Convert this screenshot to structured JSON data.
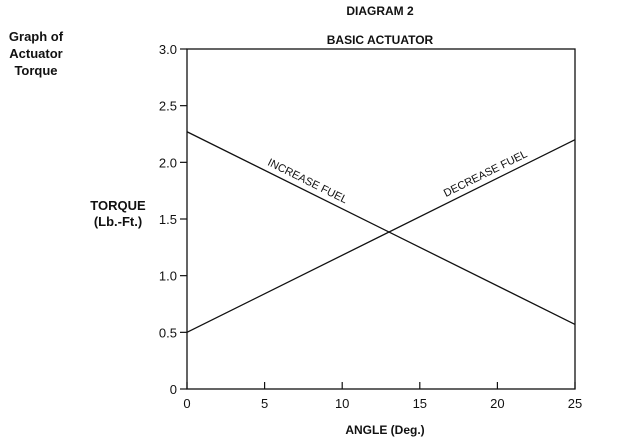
{
  "side_title": [
    "Graph of",
    "Actuator",
    "Torque"
  ],
  "diagram_label": "DIAGRAM 2",
  "chart_data": {
    "type": "line",
    "title": "BASIC ACTUATOR",
    "xlabel": "ANGLE (Deg.)",
    "ylabel": [
      "TORQUE",
      "(Lb.-Ft.)"
    ],
    "xlim": [
      0,
      25
    ],
    "ylim": [
      0,
      3.0
    ],
    "xticks": [
      0,
      5,
      10,
      15,
      20,
      25
    ],
    "yticks": [
      "0",
      "0.5",
      "1.0",
      "1.5",
      "2.0",
      "2.5",
      "3.0"
    ],
    "grid": false,
    "series": [
      {
        "name": "INCREASE FUEL",
        "x": [
          0,
          25
        ],
        "y": [
          2.27,
          0.57
        ]
      },
      {
        "name": "DECREASE FUEL",
        "x": [
          0,
          25
        ],
        "y": [
          0.5,
          2.2
        ]
      }
    ]
  },
  "colors": {
    "line": "#111111",
    "axis": "#111111"
  }
}
